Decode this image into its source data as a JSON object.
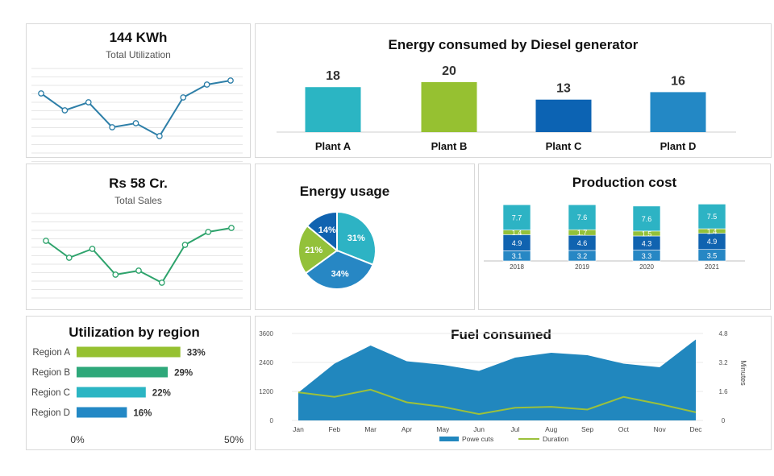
{
  "kpi_utilization": {
    "value": "144 KWh",
    "label": "Total Utilization",
    "chart_data": {
      "type": "line",
      "values": [
        115,
        136,
        126,
        157,
        152,
        168,
        120,
        104,
        99
      ],
      "color": "#2e7fa8"
    }
  },
  "kpi_sales": {
    "value": "Rs 58 Cr.",
    "label": "Total Sales",
    "chart_data": {
      "type": "line",
      "values": [
        298,
        319,
        308,
        340,
        335,
        350,
        303,
        287,
        282
      ],
      "color": "#2ea36c"
    }
  },
  "diesel": {
    "title": "Energy consumed by Diesel generator",
    "chart_data": {
      "type": "bar",
      "categories": [
        "Plant A",
        "Plant B",
        "Plant C",
        "Plant D"
      ],
      "values": [
        18,
        20,
        13,
        16
      ],
      "colors": [
        "#2bb5c3",
        "#96c131",
        "#0c63b3",
        "#2388c5"
      ]
    }
  },
  "energy_usage": {
    "title": "Energy usage",
    "chart_data": {
      "type": "pie",
      "slices": [
        {
          "label": "31%",
          "value": 31,
          "color": "#2db3c4"
        },
        {
          "label": "34%",
          "value": 34,
          "color": "#2787c4"
        },
        {
          "label": "21%",
          "value": 21,
          "color": "#93c13a"
        },
        {
          "label": "14%",
          "value": 14,
          "color": "#1063b0"
        }
      ]
    }
  },
  "production_cost": {
    "title": "Production cost",
    "chart_data": {
      "type": "bar",
      "stacked": true,
      "categories": [
        "2018",
        "2019",
        "2020",
        "2021"
      ],
      "series": [
        {
          "values": [
            3.1,
            3.2,
            3.3,
            3.5
          ],
          "labels": [
            "3.1",
            "3.2",
            "3.3",
            "3.5"
          ],
          "color": "#2787c4"
        },
        {
          "values": [
            4.9,
            4.6,
            4.3,
            4.9
          ],
          "labels": [
            "4.9",
            "4.6",
            "4.3",
            "4.9"
          ],
          "color": "#1063b0"
        },
        {
          "values": [
            1.4,
            1.7,
            1.5,
            1.4
          ],
          "labels": [
            "1.4",
            "1.7",
            "1.5",
            "1.4"
          ],
          "color": "#93c13a"
        },
        {
          "values": [
            7.7,
            7.6,
            7.6,
            7.5
          ],
          "labels": [
            "7.7",
            "7.6",
            "7.6",
            "7.5"
          ],
          "color": "#2db3c4"
        }
      ]
    }
  },
  "region": {
    "title": "Utilization by region",
    "chart_data": {
      "type": "bar",
      "orientation": "horizontal",
      "categories": [
        "Region A",
        "Region B",
        "Region C",
        "Region D"
      ],
      "values": [
        33,
        29,
        22,
        16
      ],
      "labels": [
        "33%",
        "29%",
        "22%",
        "16%"
      ],
      "colors": [
        "#96c131",
        "#2ea87a",
        "#2bb5c3",
        "#2388c5"
      ],
      "xlim": [
        0,
        50
      ],
      "xticks": [
        "0%",
        "50%"
      ]
    }
  },
  "fuel": {
    "title": "Fuel consumed",
    "ylabel_right": "Minutes",
    "chart_data": {
      "type": "area",
      "categories": [
        "Jan",
        "Feb",
        "Mar",
        "Apr",
        "May",
        "Jun",
        "Jul",
        "Aug",
        "Sep",
        "Oct",
        "Nov",
        "Dec"
      ],
      "left_axis": {
        "ticks": [
          "0",
          "1200",
          "2400",
          "3600"
        ],
        "ylim": [
          0,
          3600
        ]
      },
      "right_axis": {
        "ticks": [
          "0",
          "1.6",
          "3.2",
          "4.8"
        ],
        "ylim": [
          0,
          4.8
        ]
      },
      "series": [
        {
          "name": "Powe cuts",
          "type": "area",
          "axis": "left",
          "color": "#2187be",
          "values": [
            1150,
            2350,
            3100,
            2450,
            2300,
            2050,
            2600,
            2800,
            2700,
            2350,
            2200,
            3350
          ]
        },
        {
          "name": "Duration",
          "type": "line",
          "axis": "right",
          "color": "#9cc13b",
          "values": [
            1.55,
            1.3,
            1.7,
            1.0,
            0.75,
            0.35,
            0.7,
            0.75,
            0.6,
            1.3,
            0.9,
            0.45
          ]
        }
      ]
    }
  }
}
